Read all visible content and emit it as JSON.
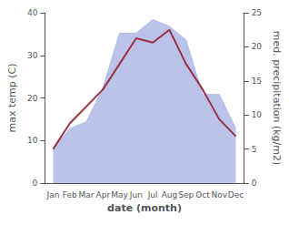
{
  "chart_data": {
    "type": "line",
    "categories": [
      "Jan",
      "Feb",
      "Mar",
      "Apr",
      "May",
      "Jun",
      "Jul",
      "Aug",
      "Sep",
      "Oct",
      "Nov",
      "Dec"
    ],
    "xlabel": "date (month)",
    "ylabel": "max temp (C)",
    "y2label": "med. precipitation (kg/m2)",
    "ylim": [
      0,
      40
    ],
    "yticks": [
      0,
      10,
      20,
      30,
      40
    ],
    "y2lim": [
      0,
      25
    ],
    "y2ticks": [
      0,
      5,
      10,
      15,
      20,
      25
    ],
    "grid": false,
    "series": [
      {
        "type": "area",
        "color": "#b0b8e8",
        "axis": "y2",
        "values": [
          5,
          8,
          9,
          14,
          22,
          22,
          24,
          23,
          21,
          13,
          13,
          8
        ]
      },
      {
        "type": "line",
        "color": "#993344",
        "values": [
          8,
          14,
          18,
          22,
          28,
          34,
          33,
          36,
          28,
          22,
          15,
          11
        ]
      }
    ]
  }
}
